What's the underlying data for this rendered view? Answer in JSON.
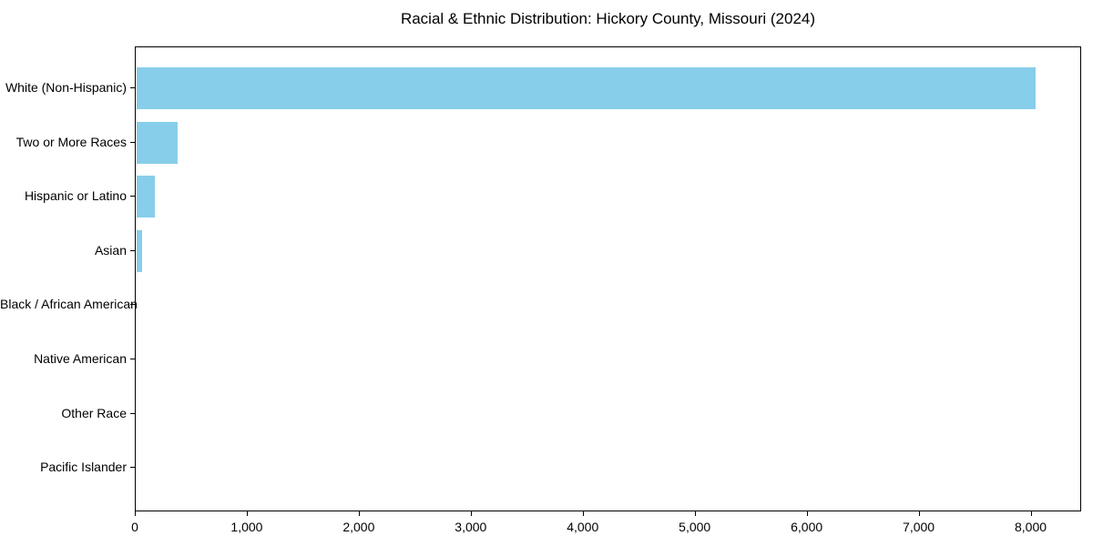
{
  "chart_data": {
    "type": "bar",
    "orientation": "horizontal",
    "title": "Racial & Ethnic Distribution: Hickory County, Missouri (2024)",
    "xlabel": "",
    "ylabel": "",
    "categories": [
      "White (Non-Hispanic)",
      "Two or More Races",
      "Hispanic or Latino",
      "Asian",
      "Black / African American",
      "Native American",
      "Other Race",
      "Pacific Islander"
    ],
    "values": [
      8030,
      370,
      160,
      50,
      0,
      0,
      0,
      0
    ],
    "xlim": [
      0,
      8435
    ],
    "x_ticks": [
      0,
      1000,
      2000,
      3000,
      4000,
      5000,
      6000,
      7000,
      8000
    ],
    "x_tick_labels": [
      "0",
      "1,000",
      "2,000",
      "3,000",
      "4,000",
      "5,000",
      "6,000",
      "7,000",
      "8,000"
    ],
    "grid": false,
    "legend": null,
    "colors": {
      "bar": "#87CEEB",
      "axis": "#000000",
      "text": "#000000",
      "background": "#ffffff"
    }
  }
}
